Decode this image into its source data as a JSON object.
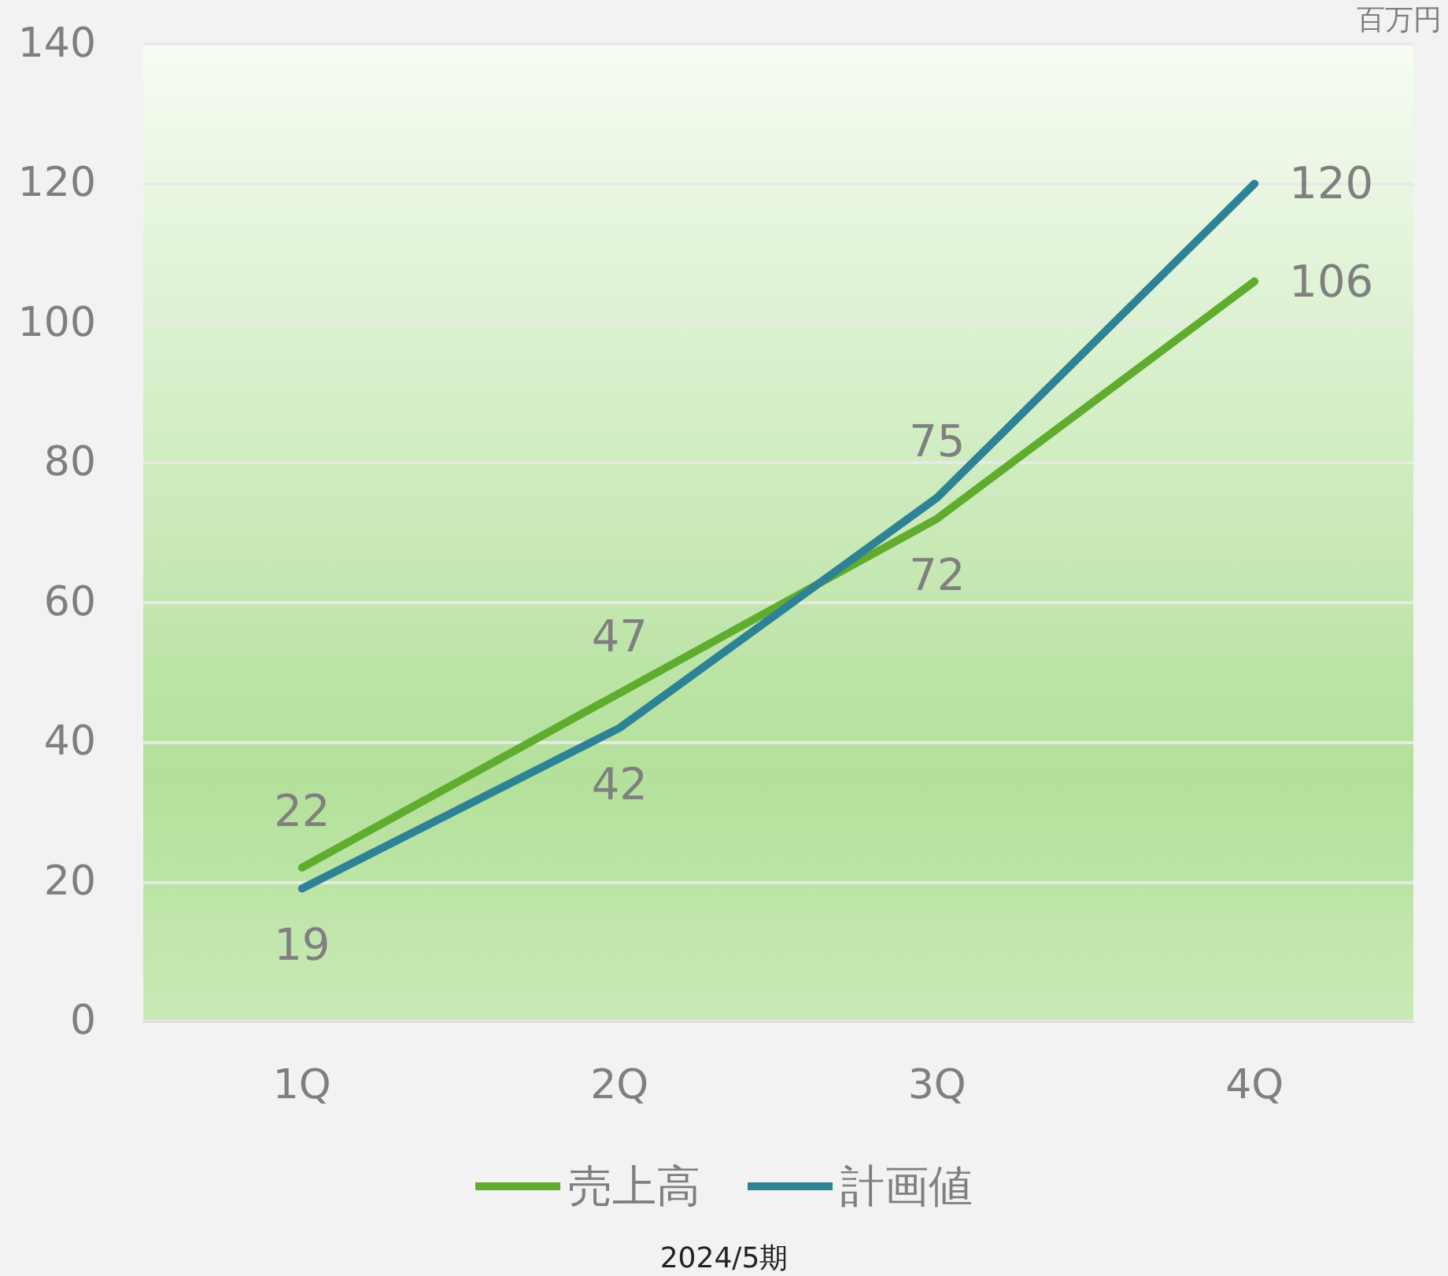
{
  "chart_data": {
    "type": "line",
    "categories": [
      "1Q",
      "2Q",
      "3Q",
      "4Q"
    ],
    "series": [
      {
        "name": "売上高",
        "color": "#5fac2e",
        "values": [
          22,
          47,
          72,
          106
        ]
      },
      {
        "name": "計画値",
        "color": "#2e8296",
        "values": [
          19,
          42,
          75,
          120
        ]
      }
    ],
    "ylim": [
      0,
      140
    ],
    "yticks": [
      0,
      20,
      40,
      60,
      80,
      100,
      120,
      140
    ],
    "ylabel": "百万円",
    "xlabel": "2024/5期",
    "grid": "y",
    "legend": "bottom",
    "data_labels": true,
    "marker": "none",
    "line_style": "solid"
  }
}
